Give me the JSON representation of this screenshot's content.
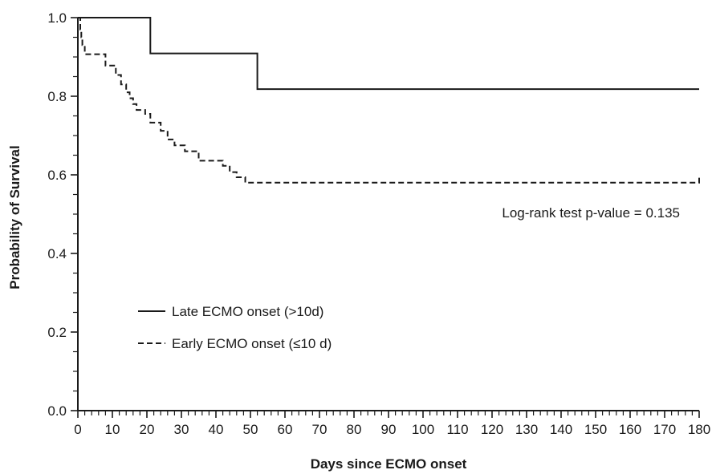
{
  "chart_data": {
    "type": "line",
    "title": "",
    "xlabel": "Days since ECMO onset",
    "ylabel": "Probability of Survival",
    "xlim": [
      0,
      180
    ],
    "ylim": [
      0,
      1.0
    ],
    "x_ticks": [
      0,
      10,
      20,
      30,
      40,
      50,
      60,
      70,
      80,
      90,
      100,
      110,
      120,
      130,
      140,
      150,
      160,
      170,
      180
    ],
    "y_ticks": [
      "0.0",
      "0.2",
      "0.4",
      "0.6",
      "0.8",
      "1.0"
    ],
    "y_tick_values": [
      0,
      0.2,
      0.4,
      0.6,
      0.8,
      1.0
    ],
    "grid": false,
    "legend_position": "lower-left",
    "annotation": "Log-rank test p-value = 0.135",
    "series": [
      {
        "name": "Late ECMO onset (>10d)",
        "style": "solid",
        "color": "#1a1a1a",
        "x": [
          0,
          21,
          21,
          52,
          52,
          180
        ],
        "y": [
          1.0,
          1.0,
          0.909,
          0.909,
          0.818,
          0.818
        ]
      },
      {
        "name": "Early ECMO onset (≤10 d)",
        "style": "dashed",
        "color": "#1a1a1a",
        "x": [
          0,
          0.7,
          0.7,
          1.0,
          1.0,
          1.3,
          1.3,
          2.0,
          2.0,
          8.0,
          8.0,
          11.0,
          11.0,
          12.5,
          12.5,
          14.0,
          14.0,
          15.0,
          15.0,
          16.0,
          16.0,
          17.0,
          17.0,
          19.5,
          19.5,
          21.0,
          21.0,
          24.0,
          24.0,
          26.0,
          26.0,
          28.0,
          28.0,
          31.0,
          31.0,
          35.0,
          35.0,
          42.0,
          42.0,
          44.0,
          44.0,
          46.0,
          46.0,
          48.5,
          48.5,
          88.0,
          88.0,
          180.0,
          180.0
        ],
        "y": [
          1.0,
          1.0,
          0.97,
          0.97,
          0.95,
          0.95,
          0.93,
          0.93,
          0.907,
          0.907,
          0.878,
          0.878,
          0.854,
          0.854,
          0.83,
          0.83,
          0.81,
          0.81,
          0.795,
          0.795,
          0.78,
          0.78,
          0.765,
          0.765,
          0.755,
          0.755,
          0.733,
          0.733,
          0.712,
          0.712,
          0.69,
          0.69,
          0.675,
          0.675,
          0.66,
          0.66,
          0.636,
          0.636,
          0.623,
          0.623,
          0.607,
          0.607,
          0.594,
          0.594,
          0.58,
          0.58,
          0.58,
          0.58,
          0.6
        ]
      }
    ]
  }
}
